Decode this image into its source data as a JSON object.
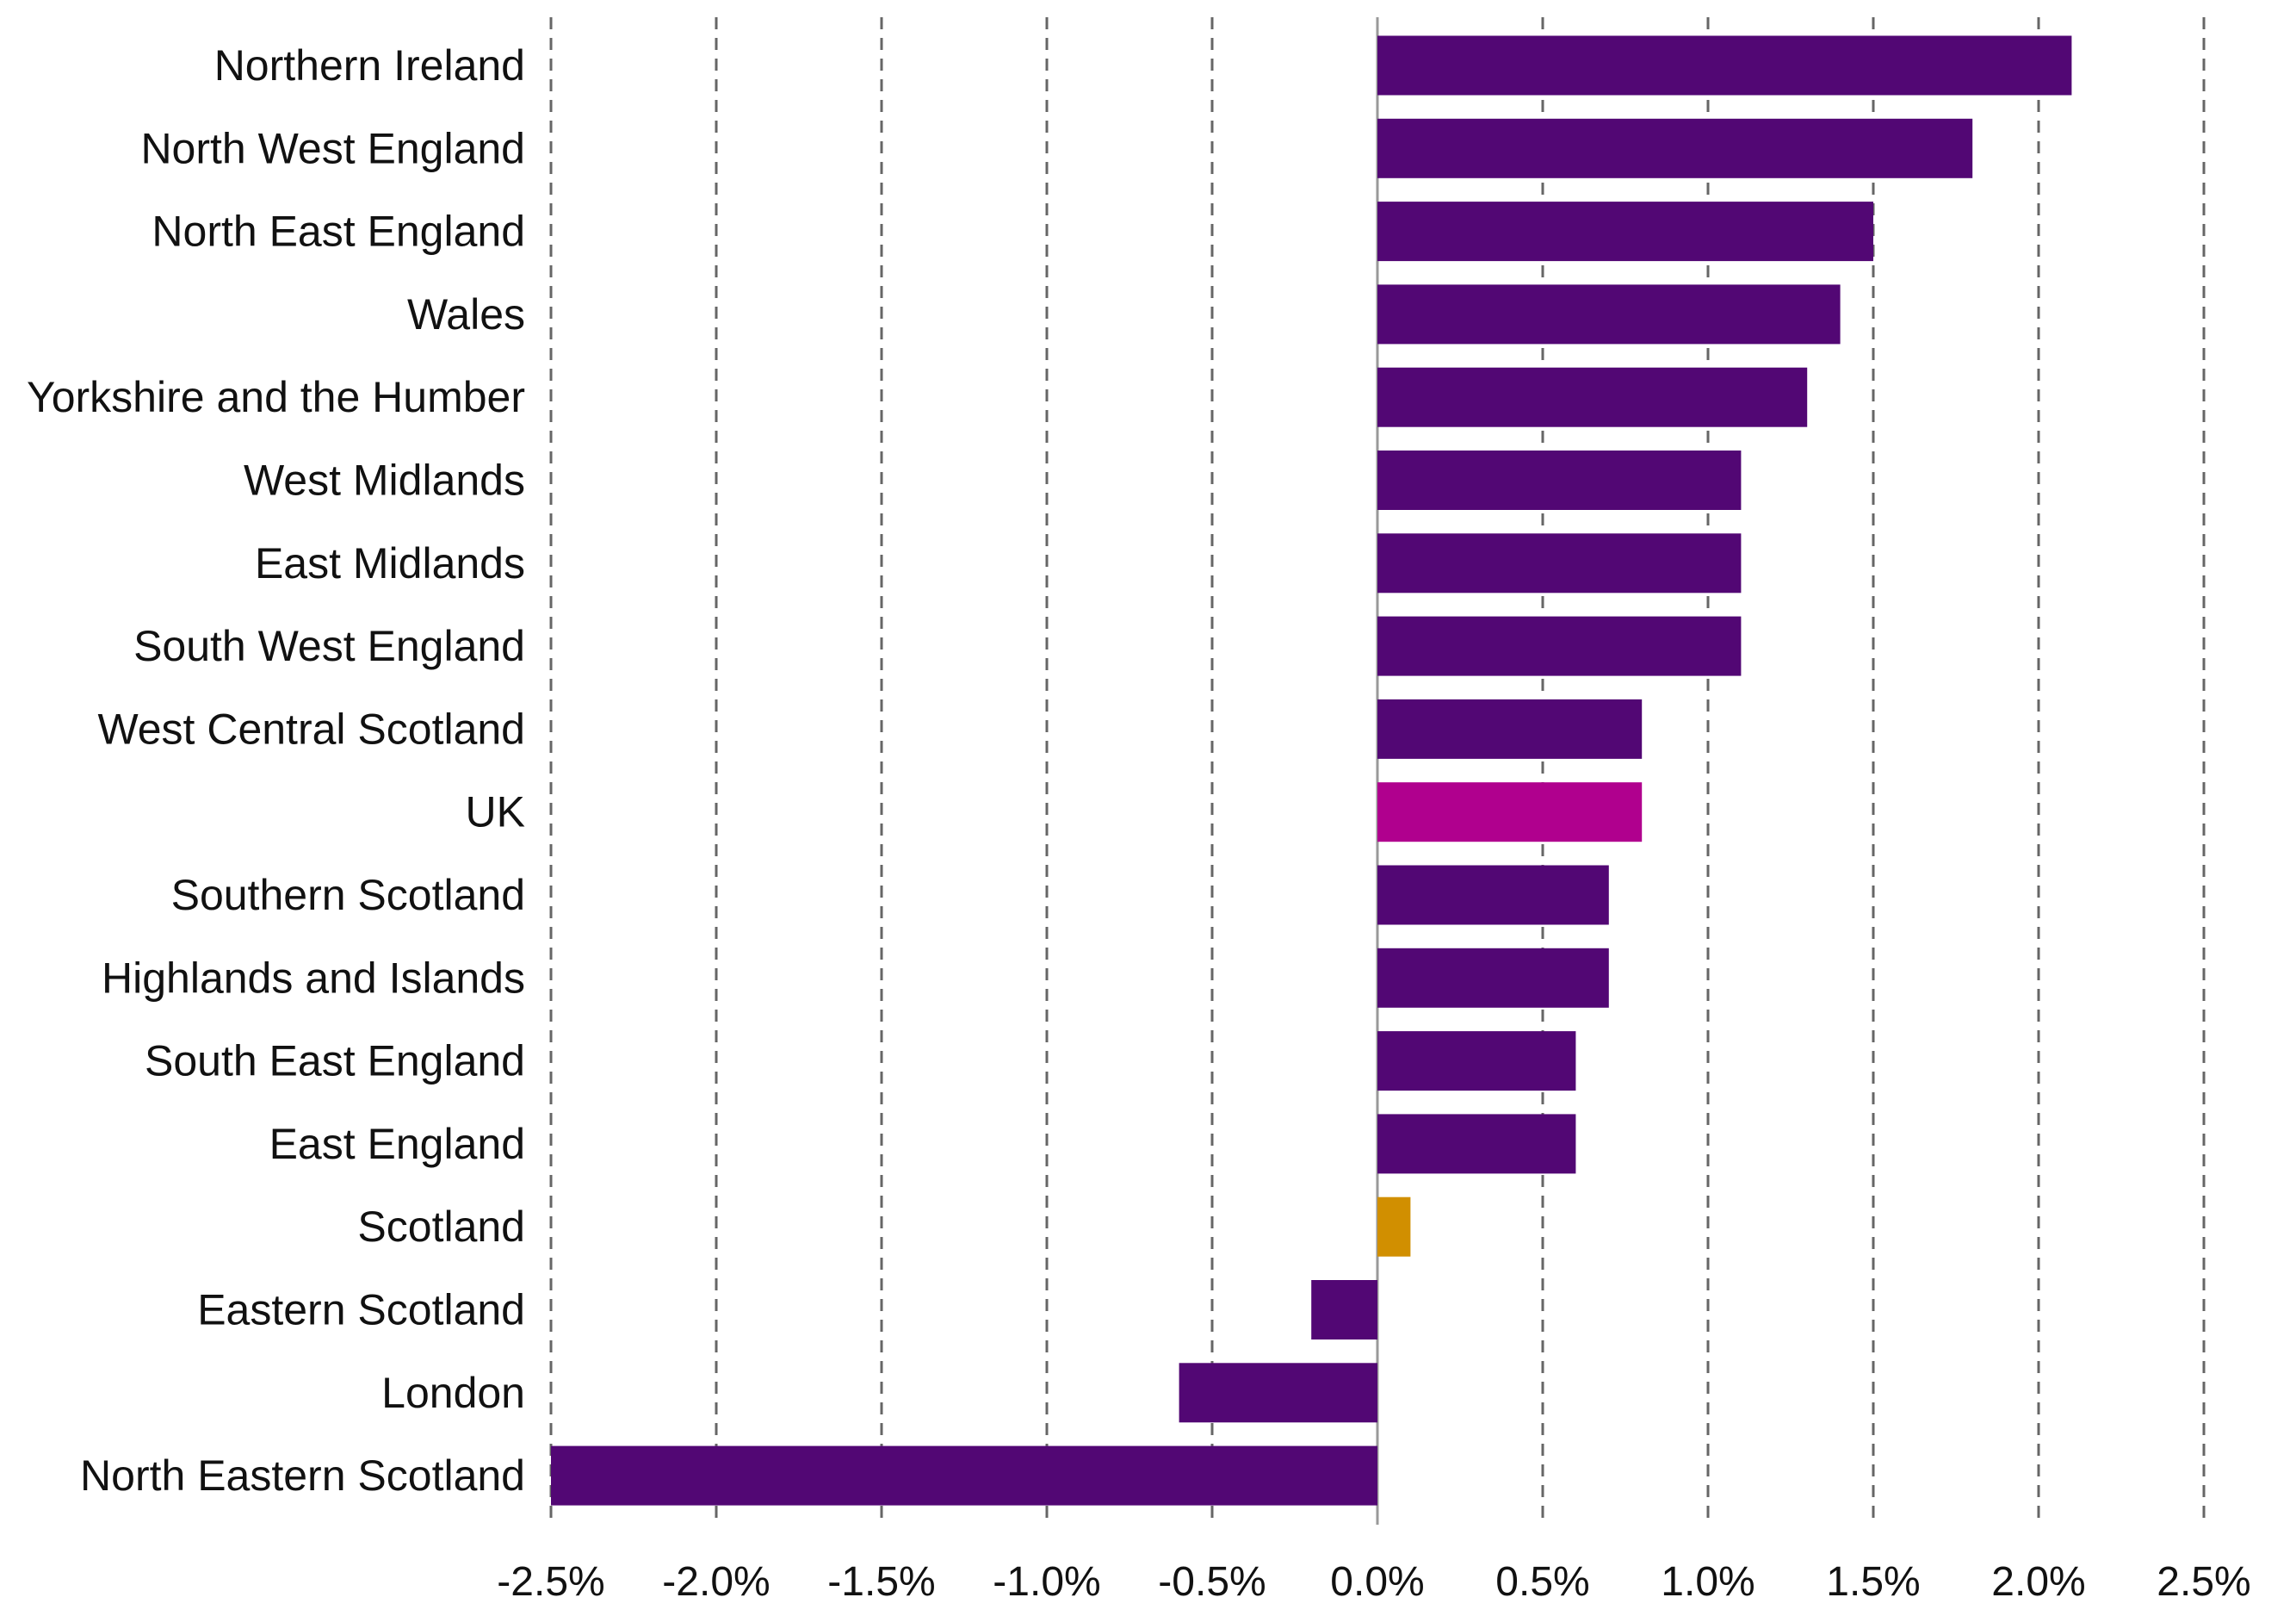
{
  "chart_data": {
    "type": "bar",
    "orientation": "horizontal",
    "title": "",
    "xlabel": "",
    "ylabel": "",
    "xlim": [
      -2.5,
      2.5
    ],
    "x_ticks": [
      -2.5,
      -2.0,
      -1.5,
      -1.0,
      -0.5,
      0.0,
      0.5,
      1.0,
      1.5,
      2.0,
      2.5
    ],
    "x_tick_labels": [
      "-2.5%",
      "-2.0%",
      "-1.5%",
      "-1.0%",
      "-0.5%",
      "0.0%",
      "0.5%",
      "1.0%",
      "1.5%",
      "2.0%",
      "2.5%"
    ],
    "grid": "vertical dashed",
    "categories": [
      "Northern Ireland",
      "North West England",
      "North East England",
      "Wales",
      "Yorkshire and the Humber",
      "West Midlands",
      "East Midlands",
      "South West England",
      "West Central Scotland",
      "UK",
      "Southern Scotland",
      "Highlands and Islands",
      "South East England",
      "East England",
      "Scotland",
      "Eastern Scotland",
      "London",
      "North Eastern Scotland"
    ],
    "values": [
      2.1,
      1.8,
      1.5,
      1.4,
      1.3,
      1.1,
      1.1,
      1.1,
      0.8,
      0.8,
      0.7,
      0.7,
      0.6,
      0.6,
      0.1,
      -0.2,
      -0.6,
      -2.5
    ],
    "colors": {
      "default": "#520774",
      "UK": "#b0008e",
      "Scotland": "#d18f00"
    }
  }
}
